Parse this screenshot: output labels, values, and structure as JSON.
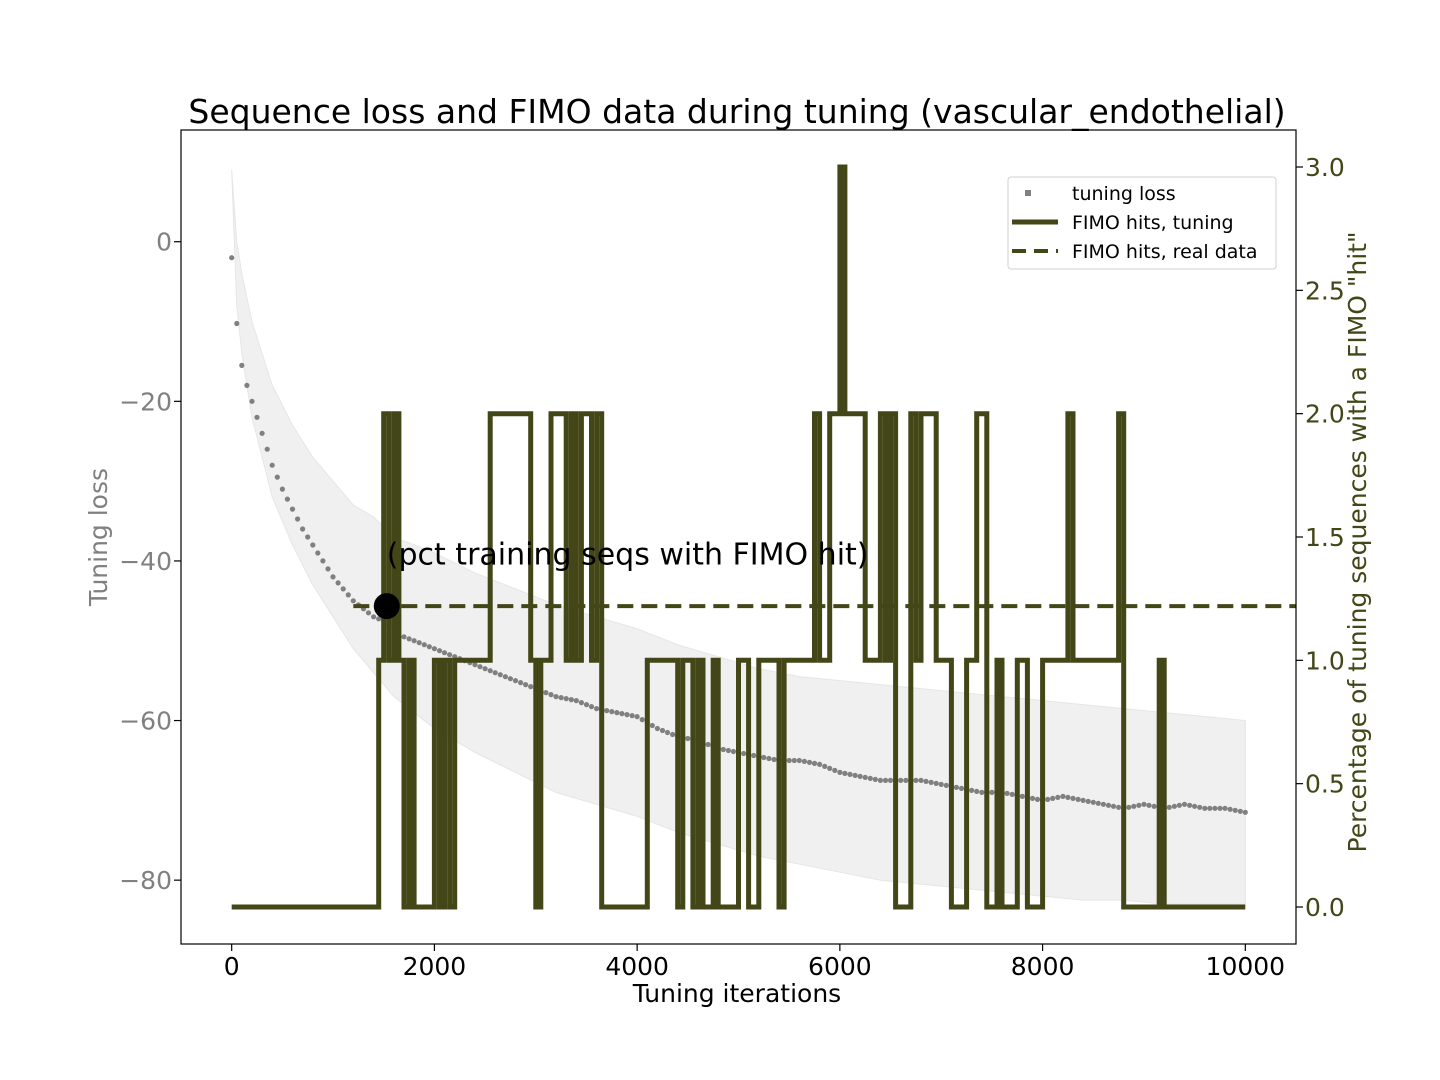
{
  "chart_data": {
    "type": "line",
    "title": "Sequence loss and FIMO data during tuning (vascular_endothelial)",
    "xlabel": "Tuning iterations",
    "ylabel": "Tuning loss",
    "y2label": "Percentage of tuning sequences with a FIMO \"hit\"",
    "xlim": [
      -500,
      10500
    ],
    "ylim": [
      -88,
      14
    ],
    "y2lim": [
      -0.15,
      3.15
    ],
    "xticks": [
      0,
      2000,
      4000,
      6000,
      8000,
      10000
    ],
    "xtick_labels": [
      "0",
      "2000",
      "4000",
      "6000",
      "8000",
      "10000"
    ],
    "yticks": [
      0,
      -20,
      -40,
      -60,
      -80
    ],
    "ytick_labels": [
      "0",
      "−20",
      "−40",
      "−60",
      "−80"
    ],
    "y2ticks": [
      0.0,
      0.5,
      1.0,
      1.5,
      2.0,
      2.5,
      3.0
    ],
    "y2tick_labels": [
      "0.0",
      "0.5",
      "1.0",
      "1.5",
      "2.0",
      "2.5",
      "3.0"
    ],
    "grid": false,
    "legend_position": "top-right",
    "colors": {
      "loss": "#808080",
      "band": "#f0f0f0",
      "fimo": "#434616",
      "marker": "#000000"
    },
    "series": [
      {
        "name": "tuning loss",
        "style": "dotted",
        "axis": "left",
        "x": [
          0,
          20,
          40,
          60,
          80,
          100,
          150,
          200,
          300,
          400,
          500,
          600,
          700,
          800,
          900,
          1000,
          1100,
          1200,
          1300,
          1400,
          1500,
          1600,
          1700,
          1800,
          2000,
          2200,
          2400,
          2600,
          2800,
          3000,
          3200,
          3400,
          3600,
          3800,
          4000,
          4200,
          4400,
          4600,
          4800,
          5000,
          5200,
          5400,
          5600,
          5800,
          6000,
          6200,
          6400,
          6600,
          6800,
          7000,
          7200,
          7400,
          7600,
          7800,
          8000,
          8200,
          8400,
          8600,
          8800,
          9000,
          9200,
          9400,
          9600,
          9800,
          10000
        ],
        "values": [
          -2,
          -6,
          -9,
          -11.5,
          -14,
          -15.5,
          -18,
          -20,
          -24,
          -28,
          -31,
          -33.5,
          -36,
          -38,
          -40,
          -42,
          -43.5,
          -45,
          -46,
          -47,
          -47.5,
          -48.5,
          -49.5,
          -50,
          -51,
          -52,
          -53,
          -54,
          -55,
          -56,
          -57,
          -57.5,
          -58.5,
          -59,
          -59.5,
          -61,
          -62,
          -62.5,
          -63.5,
          -64,
          -64.5,
          -65,
          -65,
          -65.5,
          -66.5,
          -67,
          -67.5,
          -67.5,
          -67.5,
          -68,
          -68.5,
          -69,
          -69,
          -69.5,
          -70,
          -69.5,
          -70,
          -70.5,
          -71,
          -70.5,
          -71,
          -70.5,
          -71,
          -71,
          -71.5
        ]
      },
      {
        "name": "FIMO hits, tuning",
        "style": "solid",
        "axis": "right",
        "x": [
          0,
          1450,
          1500,
          1550,
          1600,
          1650,
          1700,
          1750,
          1800,
          2000,
          2050,
          2100,
          2150,
          2200,
          2250,
          2550,
          2600,
          2950,
          3000,
          3050,
          3150,
          3300,
          3350,
          3400,
          3450,
          3550,
          3600,
          3650,
          3800,
          4100,
          4250,
          4400,
          4450,
          4550,
          4600,
          4650,
          4750,
          4800,
          5000,
          5100,
          5200,
          5400,
          5450,
          5750,
          5800,
          5900,
          6000,
          6050,
          6250,
          6400,
          6450,
          6500,
          6550,
          6700,
          6750,
          6800,
          6950,
          7100,
          7250,
          7350,
          7450,
          7550,
          7600,
          7750,
          7850,
          8000,
          8250,
          8300,
          8750,
          8800,
          9150,
          9200,
          10000
        ],
        "values": [
          0,
          1,
          2,
          1,
          2,
          1,
          0,
          1,
          0,
          1,
          0,
          1,
          0,
          1,
          1,
          2,
          2,
          1,
          0,
          1,
          2,
          1,
          2,
          1,
          2,
          1,
          2,
          0,
          0,
          1,
          1,
          0,
          1,
          0,
          1,
          0,
          1,
          0,
          1,
          0,
          1,
          0,
          1,
          2,
          1,
          2,
          3,
          2,
          1,
          2,
          1,
          2,
          0,
          2,
          1,
          2,
          1,
          0,
          1,
          2,
          0,
          1,
          0,
          1,
          0,
          1,
          2,
          1,
          2,
          0,
          1,
          0,
          0
        ]
      },
      {
        "name": "FIMO hits, real data",
        "style": "dashed",
        "axis": "right",
        "x": [
          1200,
          10500
        ],
        "values": [
          1.22,
          1.22
        ]
      }
    ],
    "band": {
      "x": [
        0,
        50,
        100,
        200,
        400,
        600,
        800,
        1000,
        1200,
        1400,
        1600,
        2000,
        2400,
        2800,
        3200,
        3600,
        4000,
        4400,
        4800,
        5200,
        5600,
        6000,
        6400,
        6800,
        7200,
        7600,
        8000,
        8400,
        8800,
        9200,
        9600,
        10000
      ],
      "upper": [
        9,
        0,
        -4,
        -10,
        -18,
        -23,
        -27,
        -30,
        -33,
        -34.5,
        -37,
        -39,
        -41.5,
        -43.5,
        -45.5,
        -47,
        -48.5,
        -50.5,
        -52,
        -53.5,
        -54.5,
        -55,
        -55.5,
        -56,
        -56.5,
        -57,
        -57.5,
        -58,
        -58.5,
        -59,
        -59.5,
        -60
      ],
      "lower": [
        9,
        -8,
        -14,
        -22,
        -32,
        -38,
        -43,
        -47,
        -51,
        -54,
        -57,
        -61,
        -64,
        -66.5,
        -69,
        -70.5,
        -72,
        -74,
        -75.5,
        -77,
        -78,
        -79,
        -80,
        -80.5,
        -81,
        -81.5,
        -82,
        -82.5,
        -82.5,
        -83,
        -83,
        -83
      ]
    },
    "marker": {
      "x": 1530,
      "y2": 1.22
    },
    "annotation": {
      "text": "(pct training seqs with FIMO hit)",
      "x": 1530,
      "y2": 1.38
    }
  }
}
